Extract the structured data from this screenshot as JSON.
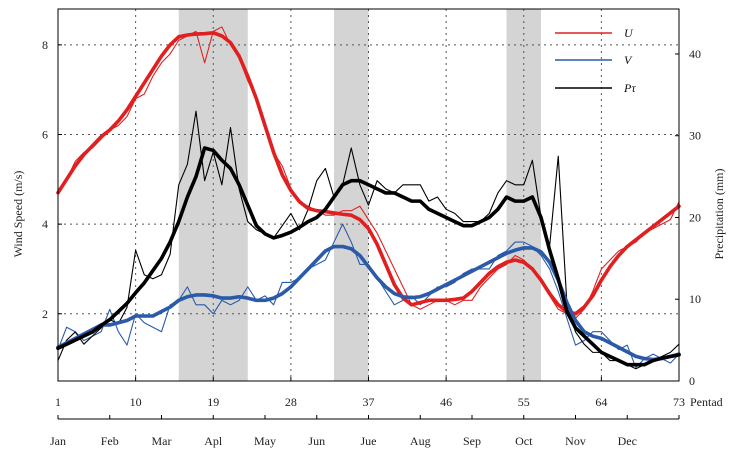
{
  "chart_data": {
    "type": "line",
    "x": [
      1,
      2,
      3,
      4,
      5,
      6,
      7,
      8,
      9,
      10,
      11,
      12,
      13,
      14,
      15,
      16,
      17,
      18,
      19,
      20,
      21,
      22,
      23,
      24,
      25,
      26,
      27,
      28,
      29,
      30,
      31,
      32,
      33,
      34,
      35,
      36,
      37,
      38,
      39,
      40,
      41,
      42,
      43,
      44,
      45,
      46,
      47,
      48,
      49,
      50,
      51,
      52,
      53,
      54,
      55,
      56,
      57,
      58,
      59,
      60,
      61,
      62,
      63,
      64,
      65,
      66,
      67,
      68,
      69,
      70,
      71,
      72,
      73
    ],
    "xlim": [
      1,
      73
    ],
    "x_ticks": [
      "1",
      "10",
      "19",
      "28",
      "37",
      "46",
      "55",
      "64",
      "73"
    ],
    "x_unit_label": "Pentad",
    "months": [
      "Jan",
      "Feb",
      "Mar",
      "Apl",
      "May",
      "Jun",
      "Jue",
      "Aug",
      "Sep",
      "Oct",
      "Nov",
      "Dec"
    ],
    "ylabel_left": "Wind Speed (m/s)",
    "ylabel_right": "Precipitation (mm)",
    "ylim_left": [
      0.5,
      8.8
    ],
    "ylim_right": [
      0,
      45.5
    ],
    "y_ticks_left": [
      "2",
      "4",
      "6",
      "8"
    ],
    "y_ticks_right": [
      "0",
      "10",
      "20",
      "30",
      "40"
    ],
    "shaded_ranges": [
      [
        15,
        23
      ],
      [
        33,
        37
      ],
      [
        53,
        57
      ]
    ],
    "grid": "dotted",
    "legend_position": "top-right",
    "series": [
      {
        "name": "U",
        "axis": "left",
        "color": "#e02020",
        "kind": "raw",
        "values": [
          4.7,
          5.0,
          5.4,
          5.6,
          5.7,
          5.9,
          6.1,
          6.2,
          6.4,
          6.8,
          6.9,
          7.3,
          7.6,
          7.8,
          8.1,
          8.2,
          8.3,
          7.6,
          8.3,
          8.4,
          8.0,
          7.7,
          7.2,
          6.8,
          6.2,
          5.6,
          5.3,
          4.8,
          4.5,
          4.4,
          4.3,
          4.2,
          4.2,
          4.3,
          4.3,
          4.4,
          4.1,
          3.8,
          3.4,
          3.0,
          2.6,
          2.2,
          2.1,
          2.2,
          2.3,
          2.3,
          2.2,
          2.3,
          2.3,
          2.6,
          2.8,
          3.0,
          3.1,
          3.3,
          3.2,
          3.0,
          2.8,
          2.4,
          2.1,
          2.0,
          1.9,
          2.1,
          2.5,
          3.0,
          3.2,
          3.4,
          3.5,
          3.6,
          3.8,
          3.9,
          4.0,
          4.1,
          4.5
        ]
      },
      {
        "name": "U smoothed",
        "axis": "left",
        "color": "#e02020",
        "kind": "smooth",
        "values": [
          4.7,
          5.0,
          5.3,
          5.55,
          5.75,
          5.95,
          6.1,
          6.3,
          6.55,
          6.85,
          7.15,
          7.45,
          7.75,
          8.0,
          8.18,
          8.22,
          8.24,
          8.25,
          8.27,
          8.2,
          8.05,
          7.75,
          7.3,
          6.8,
          6.2,
          5.6,
          5.1,
          4.75,
          4.5,
          4.35,
          4.3,
          4.28,
          4.25,
          4.22,
          4.2,
          4.1,
          3.9,
          3.55,
          3.1,
          2.65,
          2.35,
          2.2,
          2.25,
          2.3,
          2.3,
          2.3,
          2.32,
          2.35,
          2.5,
          2.7,
          2.9,
          3.05,
          3.15,
          3.2,
          3.15,
          3.0,
          2.75,
          2.45,
          2.2,
          2.05,
          2.0,
          2.15,
          2.4,
          2.75,
          3.05,
          3.3,
          3.5,
          3.65,
          3.8,
          3.95,
          4.1,
          4.25,
          4.4
        ]
      },
      {
        "name": "V",
        "axis": "left",
        "color": "#2a5aa8",
        "kind": "raw",
        "values": [
          1.2,
          1.7,
          1.6,
          1.4,
          1.5,
          1.6,
          2.1,
          1.6,
          1.3,
          2.0,
          1.8,
          1.7,
          1.6,
          2.2,
          2.3,
          2.6,
          2.2,
          2.2,
          2.0,
          2.3,
          2.2,
          2.3,
          2.6,
          2.3,
          2.4,
          2.2,
          2.7,
          2.7,
          2.8,
          3.0,
          3.1,
          3.2,
          3.6,
          4.0,
          3.6,
          3.1,
          3.1,
          2.8,
          2.5,
          2.2,
          2.3,
          2.4,
          2.2,
          2.4,
          2.6,
          2.6,
          2.7,
          2.9,
          3.0,
          3.0,
          3.0,
          3.3,
          3.4,
          3.6,
          3.6,
          3.5,
          3.3,
          3.0,
          2.5,
          1.9,
          1.3,
          1.4,
          1.6,
          1.6,
          1.4,
          1.2,
          1.3,
          0.8,
          1.0,
          1.1,
          1.0,
          0.9,
          1.1
        ]
      },
      {
        "name": "V smoothed",
        "axis": "left",
        "color": "#2a5aa8",
        "kind": "smooth",
        "values": [
          1.25,
          1.35,
          1.45,
          1.55,
          1.65,
          1.75,
          1.75,
          1.8,
          1.85,
          1.95,
          1.95,
          1.95,
          2.05,
          2.15,
          2.3,
          2.38,
          2.42,
          2.42,
          2.4,
          2.35,
          2.35,
          2.38,
          2.35,
          2.3,
          2.3,
          2.35,
          2.45,
          2.6,
          2.8,
          3.0,
          3.2,
          3.4,
          3.5,
          3.5,
          3.45,
          3.3,
          3.05,
          2.8,
          2.6,
          2.45,
          2.38,
          2.36,
          2.38,
          2.45,
          2.55,
          2.65,
          2.75,
          2.85,
          2.95,
          3.05,
          3.15,
          3.25,
          3.35,
          3.42,
          3.47,
          3.47,
          3.38,
          3.15,
          2.75,
          2.25,
          1.85,
          1.6,
          1.5,
          1.45,
          1.35,
          1.25,
          1.15,
          1.05,
          1.0,
          0.98,
          1.0,
          1.05,
          1.1
        ]
      },
      {
        "name": "Pτ",
        "axis": "right",
        "color": "#000000",
        "kind": "raw",
        "values": [
          2.5,
          5.0,
          6.0,
          4.5,
          5.5,
          6.5,
          7.5,
          7.0,
          9.0,
          16.0,
          13.0,
          12.5,
          13.0,
          15.5,
          24.0,
          26.5,
          33.0,
          24.5,
          28.0,
          24.0,
          31.0,
          23.5,
          19.5,
          18.5,
          18.0,
          17.5,
          19.0,
          20.5,
          18.5,
          21.0,
          24.5,
          26.0,
          22.5,
          24.0,
          28.5,
          24.0,
          21.5,
          24.5,
          23.5,
          23.0,
          24.0,
          24.0,
          24.0,
          22.0,
          22.5,
          21.0,
          20.5,
          19.5,
          19.5,
          19.5,
          20.5,
          23.0,
          24.5,
          24.0,
          24.0,
          27.0,
          20.0,
          16.5,
          27.5,
          9.5,
          6.0,
          4.5,
          3.5,
          3.5,
          2.5,
          2.5,
          2.0,
          1.5,
          2.0,
          2.5,
          3.0,
          3.5,
          4.5
        ]
      },
      {
        "name": "Pτ smoothed",
        "axis": "right",
        "color": "#000000",
        "kind": "smooth",
        "values": [
          4.0,
          4.5,
          5.0,
          5.5,
          6.0,
          6.8,
          7.5,
          8.5,
          9.5,
          10.8,
          12.0,
          13.5,
          15.0,
          17.0,
          19.5,
          22.5,
          25.0,
          28.5,
          28.2,
          27.0,
          26.0,
          24.0,
          21.5,
          19.0,
          18.0,
          17.5,
          17.8,
          18.2,
          18.8,
          19.5,
          20.0,
          21.0,
          22.5,
          24.0,
          24.5,
          24.5,
          24.0,
          23.5,
          23.0,
          23.0,
          22.5,
          22.0,
          22.0,
          21.0,
          20.5,
          20.0,
          19.5,
          19.0,
          19.0,
          19.5,
          20.0,
          21.0,
          22.5,
          22.0,
          22.0,
          22.5,
          20.0,
          16.0,
          12.5,
          8.5,
          6.5,
          5.5,
          4.5,
          3.5,
          3.0,
          2.5,
          2.0,
          2.0,
          2.0,
          2.5,
          2.8,
          3.0,
          3.2
        ]
      }
    ],
    "legend": [
      {
        "label": "U",
        "color": "#e02020"
      },
      {
        "label": "V",
        "color": "#2a5aa8"
      },
      {
        "label": "Pτ",
        "color": "#000000"
      }
    ]
  }
}
